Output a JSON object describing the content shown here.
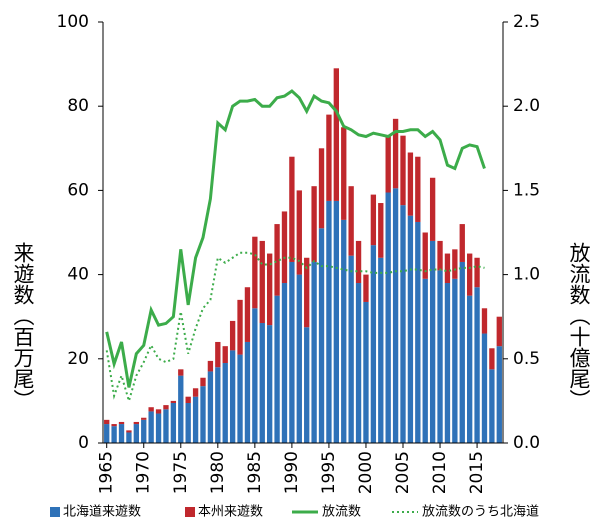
{
  "chart_data": {
    "type": "bar",
    "y_label": "来遊数（百万尾）",
    "y2_label": "放流数（十億尾）",
    "x": [
      1965,
      1966,
      1967,
      1968,
      1969,
      1970,
      1971,
      1972,
      1973,
      1974,
      1975,
      1976,
      1977,
      1978,
      1979,
      1980,
      1981,
      1982,
      1983,
      1984,
      1985,
      1986,
      1987,
      1988,
      1989,
      1990,
      1991,
      1992,
      1993,
      1994,
      1995,
      1996,
      1997,
      1998,
      1999,
      2000,
      2001,
      2002,
      2003,
      2004,
      2005,
      2006,
      2007,
      2008,
      2009,
      2010,
      2011,
      2012,
      2013,
      2014,
      2015,
      2016,
      2017,
      2018
    ],
    "xlim": [
      1964.5,
      2018.5
    ],
    "xticks": [
      1965,
      1970,
      1975,
      1980,
      1985,
      1990,
      1995,
      2000,
      2005,
      2010,
      2015
    ],
    "ylim": [
      0,
      100
    ],
    "yticks": [
      0,
      20,
      40,
      60,
      80,
      100
    ],
    "y2lim": [
      0,
      2.5
    ],
    "y2ticks": [
      {
        "value": 0,
        "label": "0.0"
      },
      0.5,
      {
        "value": 1,
        "label": "1.0"
      },
      1.5,
      {
        "value": 2,
        "label": "2.0"
      },
      2.5
    ],
    "series": [
      {
        "name": "北海道来遊数",
        "type": "bar",
        "color": "#2f72b8",
        "values": [
          4.5,
          4,
          4.5,
          2.5,
          4.5,
          5.5,
          7.5,
          7,
          8,
          9.5,
          16,
          9.5,
          11,
          13.5,
          17,
          18,
          19,
          22,
          21,
          24,
          32,
          28.5,
          28,
          35,
          38,
          43,
          40,
          27.5,
          43,
          51,
          57.5,
          57.5,
          53,
          44.5,
          38,
          33.5,
          47,
          44,
          59.5,
          60.5,
          56.5,
          54,
          52.5,
          39,
          48,
          41,
          38,
          39,
          43,
          35,
          37,
          26,
          17.5,
          23
        ]
      },
      {
        "name": "本州来遊数",
        "type": "bar",
        "color": "#c0282d",
        "values": [
          1,
          0.5,
          0.5,
          0.5,
          0.5,
          0.5,
          1,
          1,
          1,
          0.5,
          1.5,
          1.5,
          2,
          2,
          2.5,
          6,
          4,
          7,
          13,
          13,
          17,
          19.5,
          17,
          17,
          17,
          25,
          20,
          16.5,
          18,
          19,
          20.5,
          31.5,
          22,
          16.5,
          10,
          6.5,
          12,
          13,
          13.5,
          16.5,
          16.5,
          15,
          15.5,
          11,
          15,
          7,
          7,
          7,
          9,
          10,
          7,
          6,
          5,
          7
        ]
      },
      {
        "name": "放流数",
        "type": "line",
        "axis": "y2",
        "color": "#3cac4a",
        "linestyle": "solid",
        "values": [
          0.66,
          0.47,
          0.6,
          0.33,
          0.53,
          0.58,
          0.79,
          0.7,
          0.71,
          0.75,
          1.15,
          0.82,
          1.1,
          1.22,
          1.45,
          1.9,
          1.86,
          2.0,
          2.03,
          2.03,
          2.04,
          2.0,
          2.0,
          2.05,
          2.06,
          2.09,
          2.05,
          1.97,
          2.06,
          2.03,
          2.02,
          1.97,
          1.88,
          1.86,
          1.83,
          1.82,
          1.84,
          1.83,
          1.82,
          1.85,
          1.85,
          1.86,
          1.86,
          1.82,
          1.85,
          1.8,
          1.65,
          1.63,
          1.75,
          1.77,
          1.76,
          1.63,
          null,
          null
        ]
      },
      {
        "name": "放流数のうち北海道",
        "type": "line",
        "axis": "y2",
        "color": "#3cac4a",
        "linestyle": "dotted",
        "values": [
          0.55,
          0.28,
          0.4,
          0.25,
          0.4,
          0.48,
          0.58,
          0.5,
          0.48,
          0.5,
          0.78,
          0.53,
          0.68,
          0.8,
          0.85,
          1.1,
          1.07,
          1.1,
          1.13,
          1.13,
          1.12,
          1.06,
          1.06,
          1.08,
          1.1,
          1.1,
          1.08,
          1.04,
          1.08,
          1.05,
          1.05,
          1.04,
          1.03,
          1.02,
          1.02,
          1.02,
          1.01,
          1.01,
          1.01,
          1.02,
          1.02,
          1.03,
          1.03,
          1.02,
          1.03,
          1.03,
          1.02,
          1.03,
          1.04,
          1.04,
          1.05,
          1.04,
          null,
          null
        ]
      }
    ]
  }
}
